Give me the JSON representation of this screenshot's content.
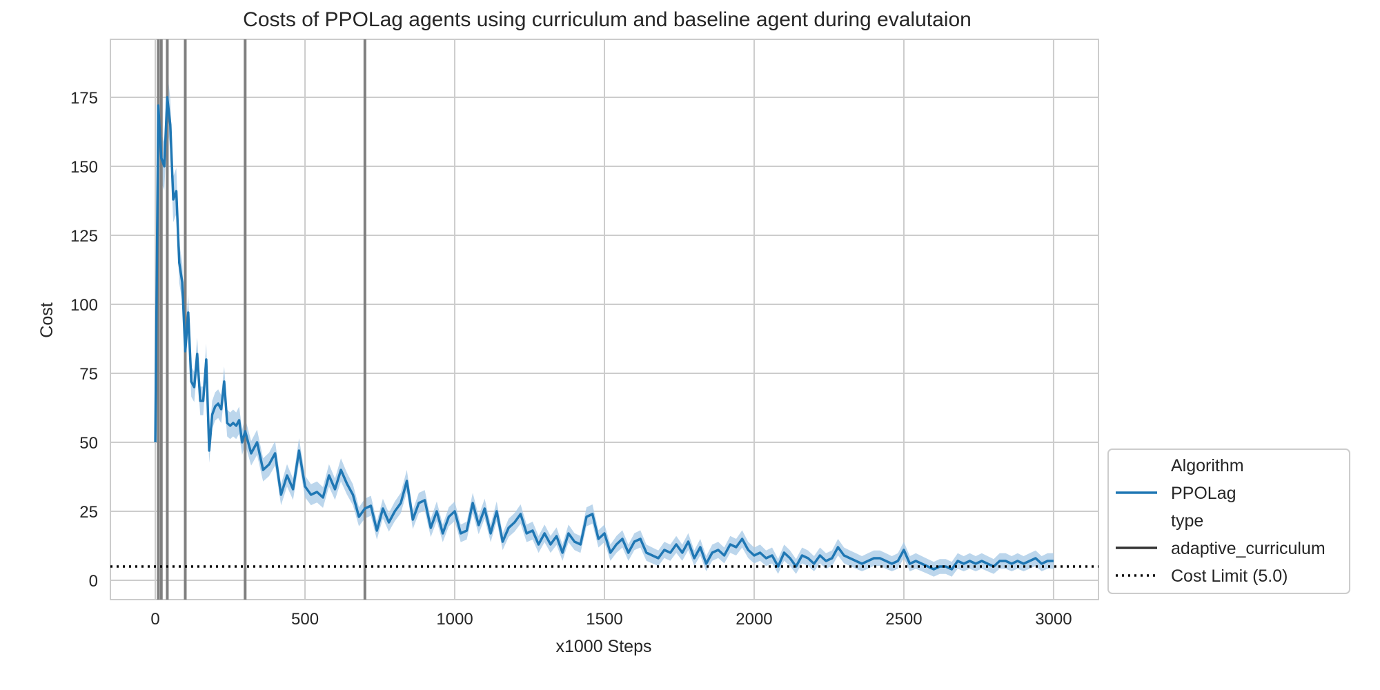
{
  "chart_data": {
    "type": "line",
    "title": "Costs of PPOLag agents using curriculum and baseline agent during evalutaion",
    "xlabel": "x1000 Steps",
    "ylabel": "Cost",
    "xlim": [
      -150,
      3150
    ],
    "ylim": [
      -7,
      196
    ],
    "xticks": [
      0,
      500,
      1000,
      1500,
      2000,
      2500,
      3000
    ],
    "yticks": [
      0,
      25,
      50,
      75,
      100,
      125,
      150,
      175
    ],
    "grid": true,
    "legend_placement": "lower-right outside",
    "colors": {
      "series": "#1f77b4",
      "band": "#a6c8e6",
      "vline": "#808080",
      "limit": "#000000"
    },
    "series": [
      {
        "name": "PPOLag",
        "style": "solid",
        "x": [
          0,
          10,
          20,
          30,
          40,
          50,
          60,
          70,
          80,
          90,
          100,
          110,
          120,
          130,
          140,
          150,
          160,
          170,
          180,
          190,
          200,
          210,
          220,
          230,
          240,
          250,
          260,
          270,
          280,
          290,
          300,
          320,
          340,
          360,
          380,
          400,
          420,
          440,
          460,
          480,
          500,
          520,
          540,
          560,
          580,
          600,
          620,
          640,
          660,
          680,
          700,
          720,
          740,
          760,
          780,
          800,
          820,
          840,
          860,
          880,
          900,
          920,
          940,
          960,
          980,
          1000,
          1020,
          1040,
          1060,
          1080,
          1100,
          1120,
          1140,
          1160,
          1180,
          1200,
          1220,
          1240,
          1260,
          1280,
          1300,
          1320,
          1340,
          1360,
          1380,
          1400,
          1420,
          1440,
          1460,
          1480,
          1500,
          1520,
          1540,
          1560,
          1580,
          1600,
          1620,
          1640,
          1660,
          1680,
          1700,
          1720,
          1740,
          1760,
          1780,
          1800,
          1820,
          1840,
          1860,
          1880,
          1900,
          1920,
          1940,
          1960,
          1980,
          2000,
          2020,
          2040,
          2060,
          2080,
          2100,
          2120,
          2140,
          2160,
          2180,
          2200,
          2220,
          2240,
          2260,
          2280,
          2300,
          2320,
          2340,
          2360,
          2380,
          2400,
          2420,
          2440,
          2460,
          2480,
          2500,
          2520,
          2540,
          2560,
          2580,
          2600,
          2620,
          2640,
          2660,
          2680,
          2700,
          2720,
          2740,
          2760,
          2780,
          2800,
          2820,
          2840,
          2860,
          2880,
          2900,
          2920,
          2940,
          2960,
          2980,
          3000
        ],
        "y": [
          50,
          172,
          153,
          150,
          175,
          165,
          138,
          141,
          115,
          108,
          83,
          97,
          72,
          70,
          82,
          65,
          65,
          80,
          47,
          60,
          63,
          64,
          62,
          72,
          57,
          56,
          57,
          56,
          58,
          50,
          54,
          46,
          50,
          40,
          42,
          46,
          31,
          38,
          33,
          47,
          34,
          31,
          32,
          30,
          38,
          33,
          40,
          35,
          31,
          23,
          26,
          27,
          18,
          26,
          21,
          25,
          28,
          36,
          22,
          28,
          29,
          19,
          25,
          17,
          23,
          25,
          17,
          18,
          28,
          20,
          26,
          17,
          25,
          14,
          19,
          21,
          24,
          17,
          18,
          13,
          17,
          13,
          16,
          10,
          17,
          14,
          13,
          23,
          24,
          15,
          17,
          10,
          13,
          15,
          10,
          14,
          15,
          10,
          9,
          8,
          11,
          10,
          13,
          10,
          14,
          8,
          12,
          6,
          10,
          11,
          9,
          13,
          12,
          15,
          11,
          9,
          10,
          8,
          9,
          5,
          10,
          8,
          5,
          9,
          8,
          6,
          9,
          7,
          8,
          12,
          9,
          8,
          7,
          6,
          7,
          8,
          8,
          7,
          6,
          7,
          11,
          6,
          7,
          6,
          5,
          4,
          5,
          5,
          4,
          7,
          6,
          7,
          6,
          7,
          6,
          5,
          7,
          7,
          6,
          7,
          6,
          7,
          8,
          6,
          7,
          7
        ],
        "band": 2.5
      },
      {
        "name": "",
        "style": "vertical-lines",
        "x": [
          10,
          20,
          40,
          100,
          300,
          700
        ]
      },
      {
        "name": "Cost Limit (5.0)",
        "style": "dotted",
        "y": 5
      }
    ],
    "legend": [
      {
        "label": "Algorithm",
        "kind": "header"
      },
      {
        "label": "PPOLag",
        "kind": "line",
        "color": "#1f77b4",
        "dash": "solid"
      },
      {
        "label": "type",
        "kind": "header"
      },
      {
        "label": "adaptive_curriculum",
        "kind": "line",
        "color": "#333333",
        "dash": "solid"
      },
      {
        "label": "Cost Limit (5.0)",
        "kind": "line",
        "color": "#000000",
        "dash": "dotted"
      }
    ]
  }
}
